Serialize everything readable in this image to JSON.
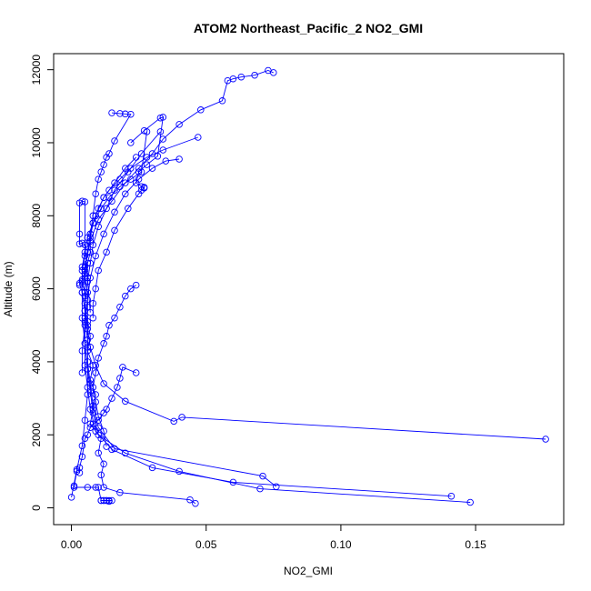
{
  "chart_data": {
    "type": "line",
    "title": "ATOM2 Northeast_Pacific_2 NO2_GMI",
    "xlabel": "NO2_GMI",
    "ylabel": "Altitude (m)",
    "xlim": [
      -0.0066,
      0.1827
    ],
    "ylim": [
      -460,
      12440
    ],
    "x_ticks": [
      0.0,
      0.05,
      0.1,
      0.15
    ],
    "x_tick_labels": [
      "0.00",
      "0.05",
      "0.10",
      "0.15"
    ],
    "y_ticks": [
      0,
      2000,
      4000,
      6000,
      8000,
      10000,
      12000
    ],
    "y_tick_labels": [
      "0",
      "2000",
      "4000",
      "6000",
      "8000",
      "10000",
      "12000"
    ],
    "marker": "open-circle",
    "color": "#0000ff",
    "series": [
      {
        "x": [
          0.046,
          0.044,
          0.018,
          0.012,
          0.011,
          0.012,
          0.01,
          0.011,
          0.007,
          0.008,
          0.009,
          0.007,
          0.008,
          0.006,
          0.007,
          0.006,
          0.006,
          0.006,
          0.005,
          0.006,
          0.007,
          0.007,
          0.008,
          0.01,
          0.012,
          0.014,
          0.018,
          0.022,
          0.028,
          0.034,
          0.047
        ],
        "y": [
          120,
          220,
          420,
          560,
          900,
          1200,
          1500,
          1900,
          2300,
          2700,
          3100,
          3500,
          3900,
          4300,
          4700,
          5100,
          5500,
          5900,
          6300,
          6700,
          7000,
          7400,
          7800,
          8200,
          8500,
          8700,
          9000,
          9300,
          9600,
          9800,
          10150
        ]
      },
      {
        "x": [
          0.148,
          0.07,
          0.04,
          0.02,
          0.01,
          0.008,
          0.007,
          0.006,
          0.006,
          0.006,
          0.005,
          0.006,
          0.007,
          0.008,
          0.01,
          0.013,
          0.016,
          0.021,
          0.026,
          0.033
        ],
        "y": [
          150,
          520,
          1000,
          1500,
          2000,
          2600,
          3200,
          3800,
          4400,
          5000,
          5600,
          6200,
          6700,
          7200,
          7700,
          8200,
          8700,
          9200,
          9700,
          10300
        ]
      },
      {
        "x": [
          0.141,
          0.06,
          0.03,
          0.015,
          0.009,
          0.007,
          0.006,
          0.005,
          0.005,
          0.005,
          0.006,
          0.007,
          0.009,
          0.012,
          0.016,
          0.02,
          0.025,
          0.03,
          0.035,
          0.04
        ],
        "y": [
          320,
          700,
          1100,
          1600,
          2100,
          2700,
          3300,
          3900,
          4500,
          5100,
          5700,
          6300,
          6900,
          7500,
          8100,
          8600,
          9000,
          9300,
          9500,
          9550
        ]
      },
      {
        "x": [
          0.076,
          0.071,
          0.016,
          0.01,
          0.008,
          0.007,
          0.006,
          0.006,
          0.005,
          0.005,
          0.005,
          0.006,
          0.007,
          0.009,
          0.012,
          0.016,
          0.02,
          0.024
        ],
        "y": [
          580,
          870,
          1620,
          2200,
          2800,
          3400,
          4000,
          4600,
          5200,
          5800,
          6400,
          7000,
          7500,
          8000,
          8500,
          8900,
          9300,
          9600
        ]
      },
      {
        "x": [
          0.176,
          0.041,
          0.038,
          0.02,
          0.012,
          0.009,
          0.007,
          0.006,
          0.005,
          0.005,
          0.004,
          0.004,
          0.005,
          0.006,
          0.008,
          0.011,
          0.014,
          0.018,
          0.022,
          0.026,
          0.028
        ],
        "y": [
          1880,
          2480,
          2370,
          2920,
          3400,
          3900,
          4400,
          4900,
          5400,
          5900,
          6200,
          6600,
          7000,
          7400,
          7800,
          8200,
          8500,
          8800,
          9000,
          9200,
          10300
        ]
      },
      {
        "x": [
          0.0,
          0.002,
          0.004,
          0.005,
          0.006,
          0.006,
          0.005,
          0.004,
          0.004,
          0.005,
          0.007,
          0.01,
          0.015,
          0.02,
          0.025,
          0.03,
          0.034,
          0.04,
          0.048,
          0.056,
          0.058,
          0.06,
          0.063,
          0.068,
          0.073,
          0.075
        ],
        "y": [
          290,
          1050,
          1700,
          2400,
          3100,
          3800,
          4500,
          5200,
          5900,
          6600,
          7300,
          7900,
          8400,
          8900,
          9300,
          9700,
          10100,
          10500,
          10900,
          11150,
          11700,
          11750,
          11800,
          11850,
          11980,
          11920
        ]
      },
      {
        "x": [
          0.002,
          0.001,
          0.001,
          0.006,
          0.009,
          0.01,
          0.011,
          0.012,
          0.011,
          0.012,
          0.013,
          0.014,
          0.015,
          0.014,
          0.013
        ],
        "y": [
          1000,
          600,
          560,
          560,
          560,
          560,
          200,
          200,
          200,
          200,
          200,
          200,
          200,
          180,
          200
        ]
      },
      {
        "x": [
          0.013,
          0.012,
          0.01,
          0.009,
          0.008,
          0.009,
          0.01,
          0.012,
          0.013,
          0.014,
          0.016,
          0.018,
          0.02,
          0.022,
          0.024
        ],
        "y": [
          1680,
          2100,
          2500,
          2900,
          3300,
          3700,
          4100,
          4500,
          4700,
          5000,
          5200,
          5500,
          5800,
          6000,
          6100
        ]
      },
      {
        "x": [
          0.024,
          0.019,
          0.018,
          0.017,
          0.015,
          0.013,
          0.012,
          0.01,
          0.008,
          0.007,
          0.006,
          0.005,
          0.004,
          0.003,
          0.003
        ],
        "y": [
          3700,
          3850,
          3550,
          3300,
          3000,
          2700,
          2600,
          2400,
          2300,
          2200,
          2000,
          1900,
          1400,
          1100,
          960
        ]
      },
      {
        "x": [
          0.007,
          0.006,
          0.005,
          0.004,
          0.003,
          0.003,
          0.003,
          0.004,
          0.005,
          0.005,
          0.004,
          0.004,
          0.003,
          0.003,
          0.004,
          0.005,
          0.005,
          0.004,
          0.004
        ],
        "y": [
          5350,
          6300,
          7200,
          7250,
          7230,
          7500,
          8350,
          8400,
          8380,
          6900,
          6500,
          6250,
          6100,
          6150,
          5900,
          5400,
          5000,
          4300,
          3700
        ]
      },
      {
        "x": [
          0.015,
          0.018,
          0.02,
          0.022,
          0.016,
          0.014,
          0.013,
          0.012,
          0.011,
          0.01,
          0.009,
          0.008,
          0.007,
          0.006,
          0.005
        ],
        "y": [
          10820,
          10800,
          10790,
          10780,
          10050,
          9700,
          9600,
          9400,
          9200,
          9000,
          8600,
          8000,
          7500,
          7000,
          6500
        ]
      },
      {
        "x": [
          0.022,
          0.027,
          0.033,
          0.034,
          0.032,
          0.028,
          0.025,
          0.024,
          0.026,
          0.027,
          0.027,
          0.026,
          0.025,
          0.021,
          0.016,
          0.013,
          0.01,
          0.009,
          0.008,
          0.008
        ],
        "y": [
          10000,
          10330,
          10680,
          10700,
          9630,
          9400,
          9200,
          8900,
          8800,
          8780,
          8760,
          8700,
          8600,
          8200,
          7600,
          7000,
          6500,
          6000,
          5600,
          5200
        ]
      }
    ]
  }
}
